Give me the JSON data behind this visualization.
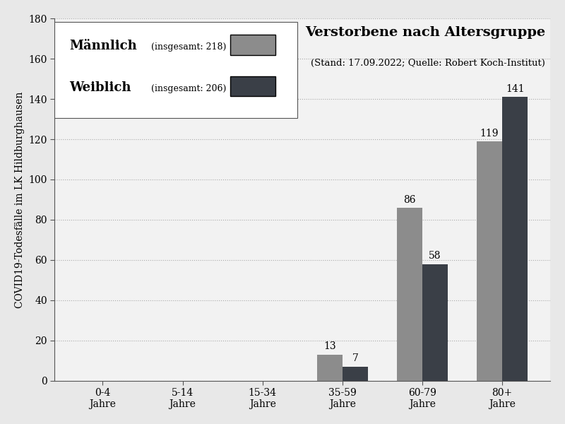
{
  "categories": [
    "0-4\nJahre",
    "5-14\nJahre",
    "15-34\nJahre",
    "35-59\nJahre",
    "60-79\nJahre",
    "80+\nJahre"
  ],
  "männlich": [
    0,
    0,
    0,
    13,
    86,
    119
  ],
  "weiblich": [
    0,
    0,
    0,
    7,
    58,
    141
  ],
  "männlich_total": 218,
  "weiblich_total": 206,
  "color_männlich": "#8c8c8c",
  "color_weiblich": "#3a3f47",
  "title": "Verstorbene nach Altersgruppe",
  "subtitle": "(Stand: 17.09.2022; Quelle: Robert Koch-Institut)",
  "ylabel": "COVID19-Todesfälle im LK Hildburghausen",
  "ylim": [
    0,
    180
  ],
  "yticks": [
    0,
    20,
    40,
    60,
    80,
    100,
    120,
    140,
    160,
    180
  ],
  "bar_width": 0.32,
  "figure_bg": "#e8e8e8",
  "axes_bg": "#f2f2f2",
  "grid_color": "#aaaaaa",
  "title_fontsize": 14,
  "subtitle_fontsize": 9.5,
  "label_fontsize": 10,
  "tick_fontsize": 10,
  "legend_name_fontsize": 13,
  "legend_count_fontsize": 10,
  "value_label_fontsize": 10
}
